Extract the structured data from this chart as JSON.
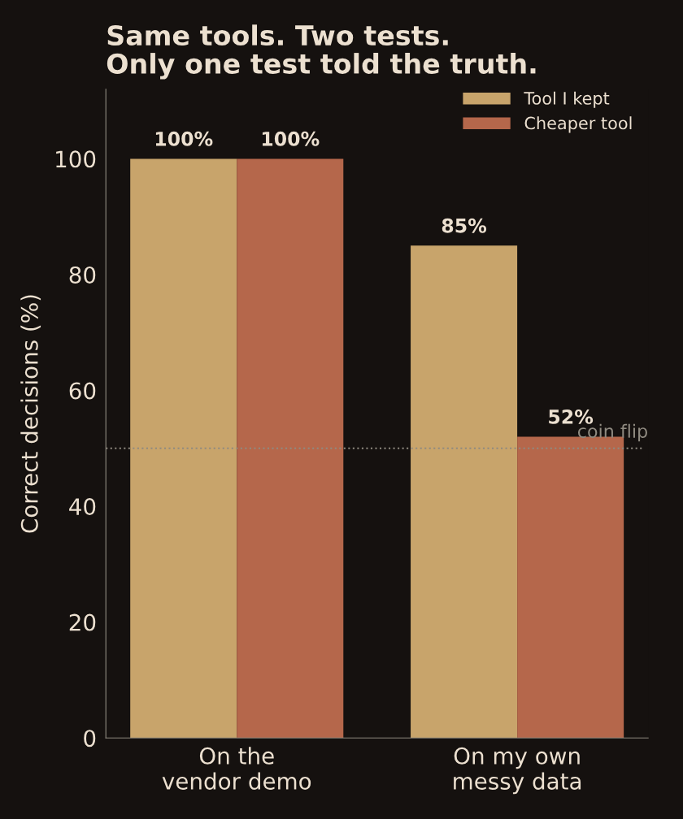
{
  "chart_data": {
    "type": "bar",
    "title": "Same tools. Two tests.\nOnly one test told the truth.",
    "ylabel": "Correct decisions (%)",
    "categories": [
      "On the\nvendor demo",
      "On my own\nmessy data"
    ],
    "series": [
      {
        "name": "Tool I kept",
        "color": "#c8a46b",
        "values": [
          100,
          85
        ],
        "value_labels": [
          "100%",
          "85%"
        ]
      },
      {
        "name": "Cheaper tool",
        "color": "#b5674b",
        "values": [
          100,
          52
        ],
        "value_labels": [
          "100%",
          "52%"
        ]
      }
    ],
    "ylim": [
      0,
      112
    ],
    "yticks": [
      0,
      20,
      40,
      60,
      80,
      100
    ],
    "grid": false,
    "legend": "top right",
    "ref_lines": [
      {
        "axis": "y",
        "value": 50,
        "label": "coin flip",
        "color": "#8f8a80",
        "line_style": "dotted"
      }
    ]
  }
}
